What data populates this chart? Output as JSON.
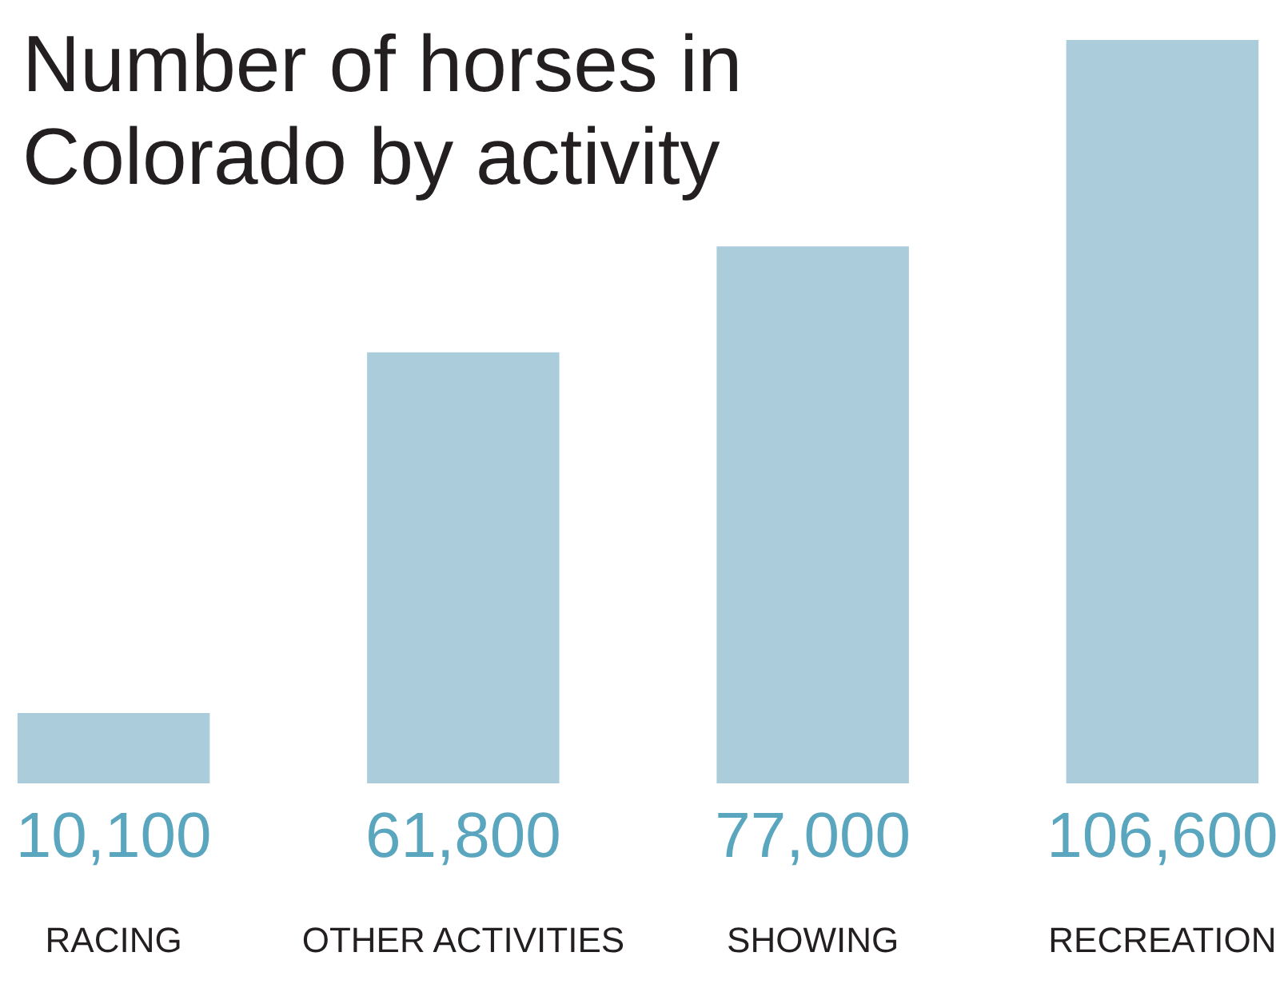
{
  "chart_data": {
    "type": "bar",
    "title": "Number of horses in Colorado by activity",
    "categories": [
      "RACING",
      "OTHER ACTIVITIES",
      "SHOWING",
      "RECREATION"
    ],
    "values": [
      10100,
      61800,
      77000,
      106600
    ],
    "color": "#abcddb",
    "value_labels": [
      "10,100",
      "61,800",
      "77,000",
      "106,600"
    ],
    "grid": false
  }
}
